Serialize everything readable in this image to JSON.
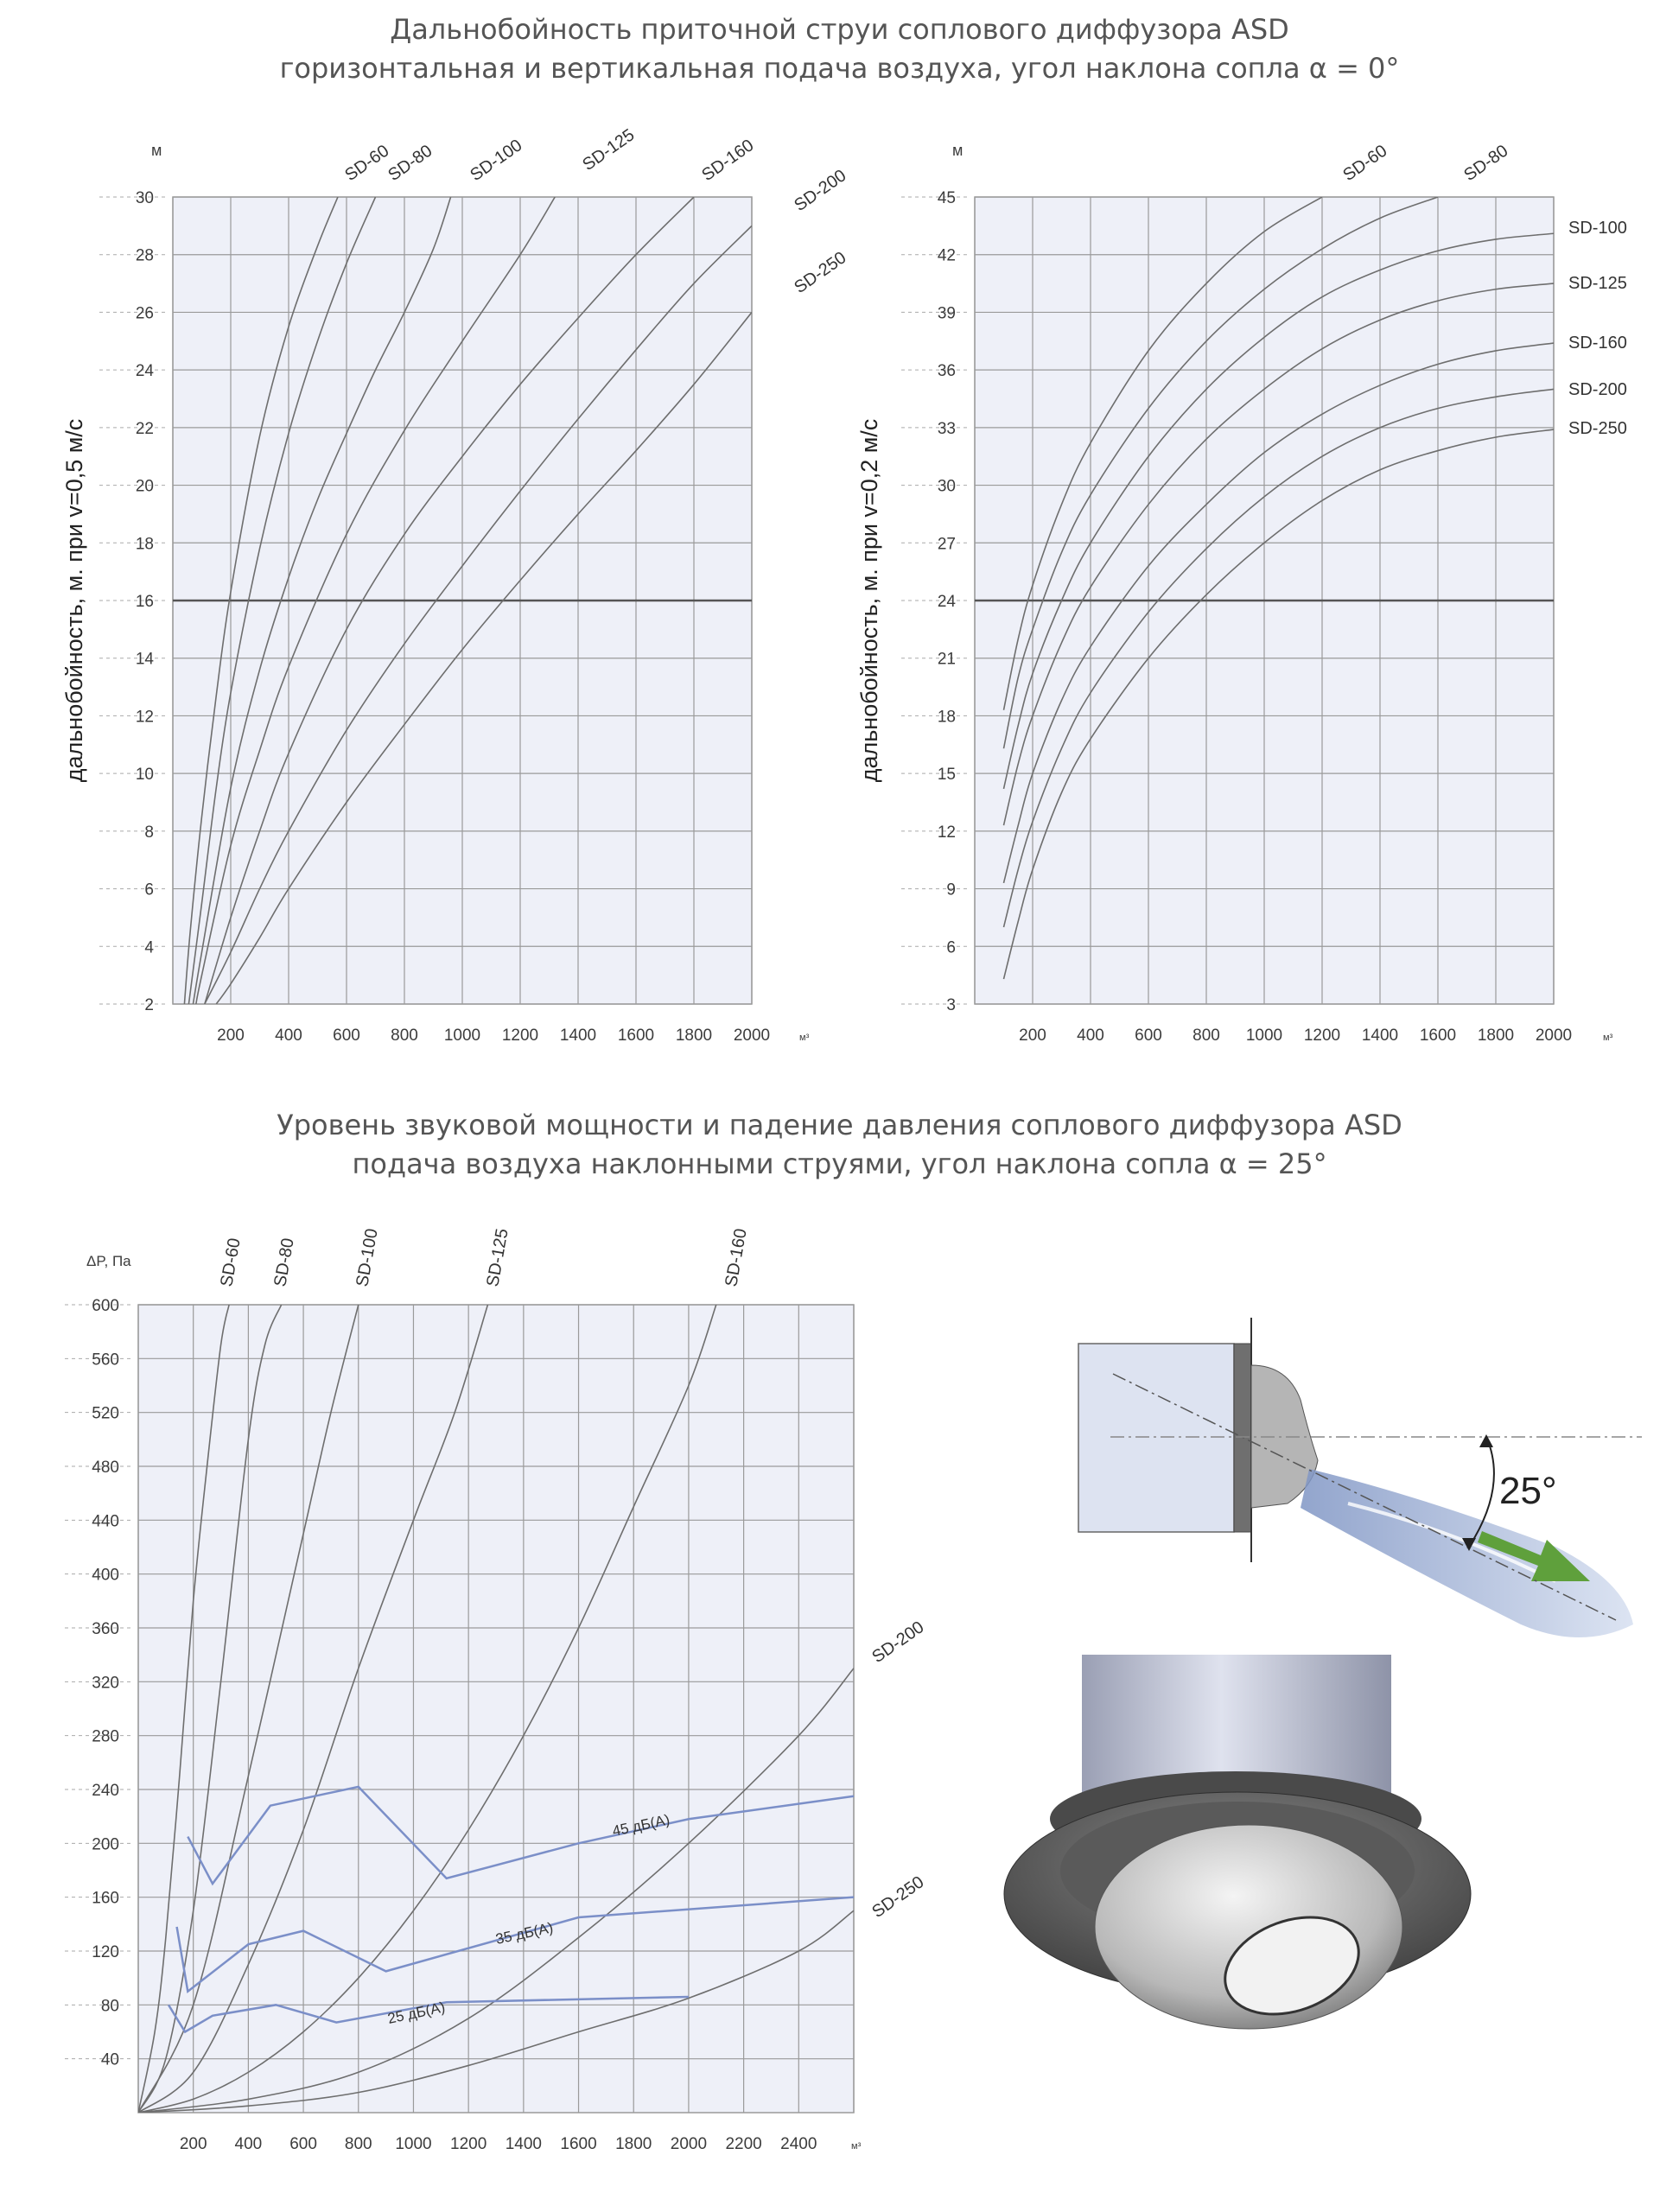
{
  "titles": {
    "top_line1": "Дальнобойность приточной струи соплового диффузора ASD",
    "top_line2": "горизонтальная и вертикальная подача воздуха, угол наклона сопла α = 0°",
    "bottom_line1": "Уровень звуковой мощности и падение давления соплового диффузора ASD",
    "bottom_line2": "подача воздуха наклонными струями, угол наклона сопла α = 25°"
  },
  "angle_label": "25°",
  "colors": {
    "grid": "#9a9a9a",
    "plot_bg": "#eef0f8",
    "curve": "#6e6e6e",
    "noise": "#7b8fc8",
    "axis_text": "#3c3c3c"
  },
  "chart_data": [
    {
      "type": "line",
      "ylabel": "дальнобойность, м. при v=0,5 м/с",
      "yunit": "м",
      "xunit": "м³",
      "xlim": [
        0,
        2000
      ],
      "ylim": [
        2,
        30
      ],
      "xticks": [
        200,
        400,
        600,
        800,
        1000,
        1200,
        1400,
        1600,
        1800,
        2000
      ],
      "yticks": [
        2,
        4,
        6,
        8,
        10,
        12,
        14,
        16,
        18,
        20,
        22,
        24,
        26,
        28,
        30
      ],
      "grid": true,
      "series": [
        {
          "name": "SD-60",
          "x": [
            40,
            60,
            100,
            150,
            200,
            300,
            400,
            500,
            570
          ],
          "y": [
            2,
            4.5,
            8.5,
            12.7,
            16.3,
            21.7,
            25.5,
            28.3,
            30
          ]
        },
        {
          "name": "SD-80",
          "x": [
            55,
            100,
            150,
            200,
            300,
            400,
            500,
            600,
            700
          ],
          "y": [
            2,
            5.5,
            9.5,
            12.8,
            17.8,
            21.8,
            25,
            27.7,
            30
          ]
        },
        {
          "name": "SD-100",
          "x": [
            70,
            100,
            200,
            300,
            400,
            500,
            600,
            700,
            800,
            900,
            960
          ],
          "y": [
            2,
            3.8,
            9.5,
            13.6,
            16.8,
            19.5,
            21.8,
            24,
            26,
            28.2,
            30
          ]
        },
        {
          "name": "SD-125",
          "x": [
            80,
            100,
            200,
            300,
            400,
            600,
            800,
            1000,
            1200,
            1320
          ],
          "y": [
            2,
            3,
            7.5,
            10.8,
            13.7,
            18.3,
            21.9,
            25,
            28,
            30
          ]
        },
        {
          "name": "SD-160",
          "x": [
            110,
            200,
            300,
            400,
            600,
            800,
            1000,
            1200,
            1400,
            1600,
            1800
          ],
          "y": [
            2,
            5,
            8,
            10.7,
            15,
            18.3,
            21,
            23.5,
            25.8,
            28,
            30
          ]
        },
        {
          "name": "SD-200",
          "x": [
            110,
            200,
            300,
            400,
            600,
            800,
            1000,
            1200,
            1400,
            1600,
            1800,
            2000
          ],
          "y": [
            2,
            3.8,
            6,
            8,
            11.5,
            14.5,
            17.2,
            19.8,
            22.3,
            24.7,
            27,
            29
          ]
        },
        {
          "name": "SD-250",
          "x": [
            150,
            200,
            300,
            400,
            600,
            800,
            1000,
            1200,
            1400,
            1600,
            1800,
            2000
          ],
          "y": [
            2,
            2.7,
            4.3,
            6,
            9,
            11.7,
            14.3,
            16.7,
            19,
            21.2,
            23.5,
            26
          ]
        }
      ],
      "reference_y": 16
    },
    {
      "type": "line",
      "ylabel": "дальнобойность, м. при v=0,2 м/с",
      "yunit": "м",
      "xunit": "м³",
      "xlim": [
        0,
        2000
      ],
      "ylim": [
        3,
        45
      ],
      "xticks": [
        200,
        400,
        600,
        800,
        1000,
        1200,
        1400,
        1600,
        1800,
        2000
      ],
      "yticks": [
        3,
        6,
        9,
        12,
        15,
        18,
        21,
        24,
        27,
        30,
        33,
        36,
        39,
        42,
        45
      ],
      "grid": true,
      "series": [
        {
          "name": "SD-60",
          "x": [
            100,
            150,
            200,
            300,
            400,
            600,
            800,
            1000,
            1200
          ],
          "y": [
            18.3,
            22,
            24.8,
            29,
            32.2,
            37,
            40.5,
            43.2,
            45
          ]
        },
        {
          "name": "SD-80",
          "x": [
            100,
            150,
            200,
            300,
            400,
            600,
            800,
            1000,
            1200,
            1400,
            1600
          ],
          "y": [
            16.3,
            20,
            22.5,
            26.5,
            29.5,
            34,
            37.5,
            40.2,
            42.3,
            43.9,
            45
          ]
        },
        {
          "name": "SD-100",
          "x": [
            100,
            150,
            200,
            300,
            400,
            600,
            800,
            1000,
            1200,
            1400,
            1600,
            1800,
            2000
          ],
          "y": [
            14.2,
            17.5,
            20.2,
            24,
            27,
            31.5,
            35,
            37.7,
            39.8,
            41.2,
            42.2,
            42.8,
            43.1
          ]
        },
        {
          "name": "SD-125",
          "x": [
            100,
            150,
            200,
            300,
            400,
            600,
            800,
            1000,
            1200,
            1400,
            1600,
            1800,
            2000
          ],
          "y": [
            12.3,
            15.5,
            18,
            21.8,
            24.7,
            29,
            32.4,
            35,
            37.1,
            38.6,
            39.6,
            40.2,
            40.5
          ]
        },
        {
          "name": "SD-160",
          "x": [
            100,
            150,
            200,
            300,
            400,
            600,
            800,
            1000,
            1200,
            1400,
            1600,
            1800,
            2000
          ],
          "y": [
            9.3,
            12.3,
            15,
            18.8,
            21.6,
            25.8,
            29,
            31.7,
            33.7,
            35.2,
            36.3,
            37,
            37.4
          ]
        },
        {
          "name": "SD-200",
          "x": [
            100,
            150,
            200,
            300,
            400,
            600,
            800,
            1000,
            1200,
            1400,
            1600,
            1800,
            2000
          ],
          "y": [
            7,
            10,
            12.5,
            16.3,
            19.2,
            23.4,
            26.7,
            29.4,
            31.5,
            33,
            34,
            34.6,
            35
          ]
        },
        {
          "name": "SD-250",
          "x": [
            100,
            150,
            200,
            300,
            400,
            600,
            800,
            1000,
            1200,
            1400,
            1600,
            1800,
            2000
          ],
          "y": [
            4.3,
            7.3,
            10,
            14,
            16.8,
            21,
            24.3,
            27,
            29.2,
            30.8,
            31.8,
            32.5,
            32.9
          ]
        }
      ],
      "reference_y": 24
    },
    {
      "type": "line",
      "ylabel": "ΔP, Па",
      "xunit": "м³",
      "xlim": [
        0,
        2600
      ],
      "ylim": [
        0,
        600
      ],
      "xticks": [
        200,
        400,
        600,
        800,
        1000,
        1200,
        1400,
        1600,
        1800,
        2000,
        2200,
        2400
      ],
      "yticks": [
        40,
        80,
        120,
        160,
        200,
        240,
        280,
        320,
        360,
        400,
        440,
        480,
        520,
        560,
        600
      ],
      "grid": true,
      "series": [
        {
          "name": "SD-60",
          "x": [
            0,
            60,
            100,
            150,
            200,
            250,
            300,
            330
          ],
          "y": [
            0,
            60,
            130,
            250,
            380,
            480,
            570,
            600
          ]
        },
        {
          "name": "SD-80",
          "x": [
            0,
            100,
            200,
            300,
            400,
            460,
            520
          ],
          "y": [
            0,
            40,
            150,
            320,
            500,
            570,
            600
          ]
        },
        {
          "name": "SD-100",
          "x": [
            0,
            200,
            400,
            600,
            700,
            800
          ],
          "y": [
            0,
            80,
            250,
            430,
            520,
            600
          ]
        },
        {
          "name": "SD-125",
          "x": [
            0,
            200,
            400,
            600,
            800,
            1000,
            1150,
            1270
          ],
          "y": [
            0,
            30,
            110,
            210,
            330,
            440,
            520,
            600
          ]
        },
        {
          "name": "SD-160",
          "x": [
            0,
            200,
            400,
            600,
            800,
            1000,
            1200,
            1400,
            1600,
            1800,
            2000,
            2100
          ],
          "y": [
            0,
            10,
            30,
            60,
            100,
            150,
            210,
            280,
            360,
            450,
            540,
            600
          ]
        },
        {
          "name": "SD-200",
          "x": [
            0,
            400,
            800,
            1200,
            1600,
            2000,
            2400,
            2600
          ],
          "y": [
            0,
            10,
            30,
            70,
            130,
            200,
            280,
            330
          ]
        },
        {
          "name": "SD-250",
          "x": [
            0,
            400,
            800,
            1200,
            1600,
            2000,
            2400,
            2600
          ],
          "y": [
            0,
            5,
            15,
            35,
            60,
            85,
            120,
            150
          ]
        }
      ],
      "noise_lines": [
        {
          "name": "45 дБ(А)",
          "x": [
            180,
            270,
            480,
            800,
            1120,
            1600,
            2000,
            2600
          ],
          "y": [
            205,
            170,
            228,
            242,
            174,
            200,
            218,
            235
          ]
        },
        {
          "name": "35 дБ(А)",
          "x": [
            140,
            180,
            400,
            600,
            900,
            1600,
            2600
          ],
          "y": [
            138,
            90,
            125,
            135,
            105,
            145,
            160
          ]
        },
        {
          "name": "25 дБ(А)",
          "x": [
            110,
            170,
            270,
            500,
            720,
            1120,
            2000
          ],
          "y": [
            80,
            60,
            72,
            80,
            67,
            82,
            86
          ]
        }
      ]
    }
  ]
}
